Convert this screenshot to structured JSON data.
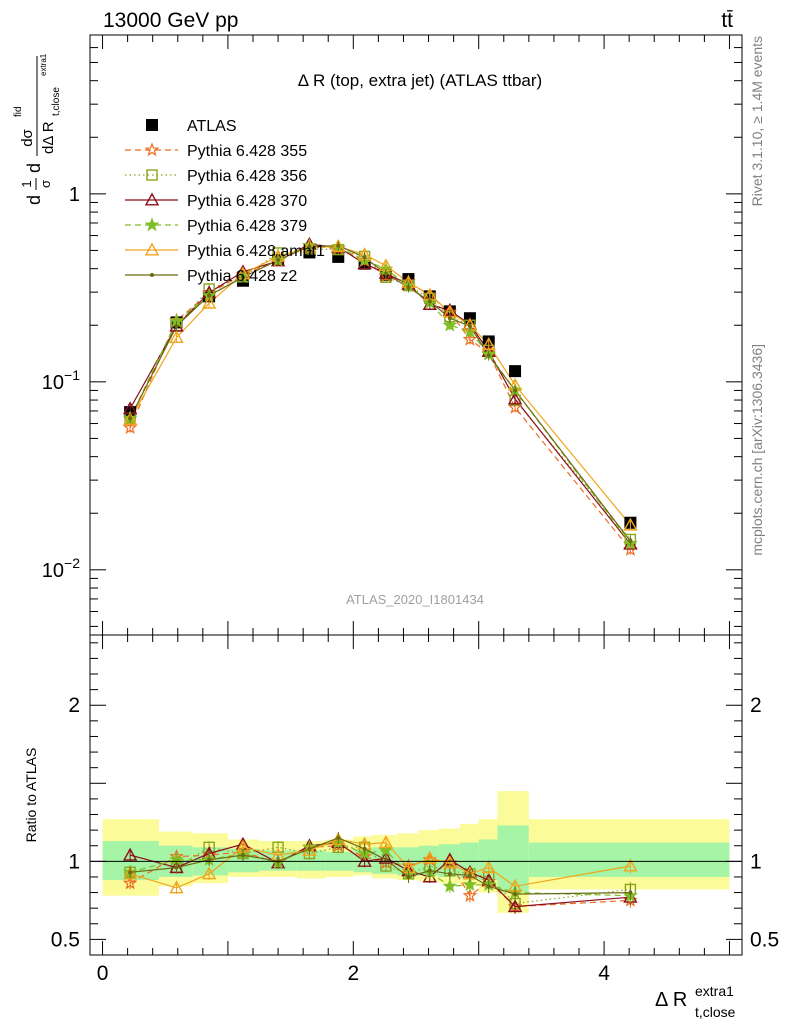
{
  "header": {
    "left": "13000 GeV pp",
    "right": "tt̄"
  },
  "side": {
    "rivet": "Rivet 3.1.10, ≥ 1.4M events",
    "mcplots": "mcplots.cern.ch [arXiv:1306.3436]"
  },
  "chart_data": [
    {
      "type": "line",
      "panel": "main",
      "title": "Δ R (top, extra jet) (ATLAS ttbar)",
      "ylabel_parts": {
        "frac1": "1",
        "sigma": "σ",
        "d": "d",
        "dsigma": "dσ",
        "fid": "fid",
        "dDR": "dΔ R",
        "sub": "t,close",
        "sup": "extra1"
      },
      "watermark": "ATLAS_2020_I1801434",
      "y_scale": "log",
      "ylim": [
        0.0045,
        7.0
      ],
      "y_tick_labels": [
        {
          "value": 0.01,
          "base": "10",
          "exp": "−2"
        },
        {
          "value": 0.1,
          "base": "10",
          "exp": "−1"
        },
        {
          "value": 1,
          "base": "1",
          "exp": ""
        }
      ],
      "x": [
        0.22,
        0.59,
        0.85,
        1.12,
        1.4,
        1.65,
        1.88,
        2.09,
        2.26,
        2.44,
        2.61,
        2.77,
        2.93,
        3.08,
        3.29,
        4.21
      ],
      "legend_placement": "top-left",
      "series": [
        {
          "name": "ATLAS",
          "color": "#000000",
          "marker": "square-filled",
          "line": "none",
          "values": [
            0.069,
            0.207,
            0.285,
            0.345,
            0.445,
            0.488,
            0.462,
            0.425,
            0.37,
            0.352,
            0.285,
            0.237,
            0.218,
            0.164,
            0.114,
            0.0178
          ]
        },
        {
          "name": "Pythia 6.428 355",
          "color": "#ee6b1f",
          "marker": "star",
          "line": "dashed",
          "values": [
            0.057,
            0.212,
            0.296,
            0.372,
            0.44,
            0.53,
            0.51,
            0.44,
            0.365,
            0.34,
            0.288,
            0.235,
            0.168,
            0.142,
            0.073,
            0.0128
          ]
        },
        {
          "name": "Pythia 6.428 356",
          "color": "#8aa51e",
          "marker": "square-open",
          "line": "dotted",
          "values": [
            0.064,
            0.198,
            0.312,
            0.362,
            0.485,
            0.51,
            0.505,
            0.465,
            0.36,
            0.325,
            0.278,
            0.222,
            0.2,
            0.147,
            0.08,
            0.0145
          ]
        },
        {
          "name": "Pythia 6.428 370",
          "color": "#8b0f1e",
          "marker": "triangle-open",
          "line": "solid",
          "values": [
            0.072,
            0.198,
            0.298,
            0.385,
            0.44,
            0.54,
            0.52,
            0.425,
            0.378,
            0.33,
            0.258,
            0.24,
            0.202,
            0.145,
            0.081,
            0.0137
          ]
        },
        {
          "name": "Pythia 6.428 379",
          "color": "#7fbe24",
          "marker": "star-filled",
          "line": "dashed",
          "values": [
            0.064,
            0.21,
            0.287,
            0.362,
            0.442,
            0.53,
            0.52,
            0.445,
            0.398,
            0.325,
            0.264,
            0.2,
            0.185,
            0.14,
            0.09,
            0.0138
          ]
        },
        {
          "name": "Pythia 6.428 ambt1",
          "color": "#f0a51a",
          "marker": "triangle-open",
          "line": "solid",
          "values": [
            0.063,
            0.172,
            0.262,
            0.375,
            0.465,
            0.52,
            0.525,
            0.475,
            0.415,
            0.338,
            0.29,
            0.235,
            0.2,
            0.158,
            0.096,
            0.0173
          ]
        },
        {
          "name": "Pythia 6.428 z2",
          "color": "#6b6b14",
          "marker": "dot",
          "line": "solid",
          "values": [
            0.064,
            0.198,
            0.288,
            0.36,
            0.445,
            0.525,
            0.53,
            0.46,
            0.375,
            0.318,
            0.268,
            0.218,
            0.198,
            0.138,
            0.09,
            0.0142
          ]
        }
      ]
    },
    {
      "type": "line",
      "panel": "ratio",
      "ylabel": "Ratio to ATLAS",
      "xlabel_parts": {
        "main": "Δ R",
        "sup": "extra1",
        "sub": "t,close"
      },
      "ylim": [
        0.4,
        2.45
      ],
      "xlim": [
        -0.1,
        5.1
      ],
      "x_ticks": [
        0,
        2,
        4
      ],
      "y_ticks": [
        0.5,
        1,
        2
      ],
      "reference_line": 1,
      "x": [
        0.22,
        0.59,
        0.85,
        1.12,
        1.4,
        1.65,
        1.88,
        2.09,
        2.26,
        2.44,
        2.61,
        2.77,
        2.93,
        3.08,
        3.29,
        4.21
      ],
      "uncertainty_bands": {
        "bin_edges": [
          0.0,
          0.45,
          0.72,
          1.0,
          1.25,
          1.55,
          1.78,
          2.0,
          2.15,
          2.35,
          2.52,
          2.68,
          2.85,
          3.0,
          3.15,
          3.4,
          5.0
        ],
        "inner_color": "#a6f5a6",
        "outer_color": "#fbfb99",
        "inner": [
          [
            0.88,
            1.13
          ],
          [
            0.9,
            1.1
          ],
          [
            0.91,
            1.09
          ],
          [
            0.93,
            1.08
          ],
          [
            0.94,
            1.07
          ],
          [
            0.94,
            1.07
          ],
          [
            0.94,
            1.06
          ],
          [
            0.93,
            1.08
          ],
          [
            0.92,
            1.09
          ],
          [
            0.91,
            1.09
          ],
          [
            0.91,
            1.1
          ],
          [
            0.9,
            1.11
          ],
          [
            0.89,
            1.12
          ],
          [
            0.88,
            1.14
          ],
          [
            0.8,
            1.23
          ],
          [
            0.9,
            1.12
          ]
        ],
        "outer": [
          [
            0.78,
            1.27
          ],
          [
            0.84,
            1.19
          ],
          [
            0.86,
            1.18
          ],
          [
            0.9,
            1.14
          ],
          [
            0.9,
            1.13
          ],
          [
            0.89,
            1.13
          ],
          [
            0.9,
            1.14
          ],
          [
            0.91,
            1.16
          ],
          [
            0.89,
            1.17
          ],
          [
            0.88,
            1.18
          ],
          [
            0.87,
            1.2
          ],
          [
            0.86,
            1.21
          ],
          [
            0.84,
            1.24
          ],
          [
            0.8,
            1.27
          ],
          [
            0.67,
            1.45
          ],
          [
            0.82,
            1.27
          ]
        ]
      },
      "series": [
        {
          "name": "Pythia 6.428 355",
          "color": "#ee6b1f",
          "values": [
            0.86,
            1.03,
            1.04,
            1.06,
            0.99,
            1.09,
            1.1,
            1.03,
            0.99,
            0.97,
            1.01,
            0.99,
            0.78,
            0.87,
            0.71,
            0.75
          ]
        },
        {
          "name": "Pythia 6.428 356",
          "color": "#8aa51e",
          "values": [
            0.93,
            0.96,
            1.09,
            1.05,
            1.09,
            1.05,
            1.09,
            1.09,
            0.97,
            0.92,
            0.97,
            0.94,
            0.92,
            0.9,
            0.73,
            0.82
          ]
        },
        {
          "name": "Pythia 6.428 370",
          "color": "#8b0f1e",
          "values": [
            1.04,
            0.96,
            1.05,
            1.11,
            0.99,
            1.1,
            1.12,
            1.0,
            1.02,
            0.94,
            0.9,
            1.01,
            0.93,
            0.88,
            0.71,
            0.77
          ]
        },
        {
          "name": "Pythia 6.428 379",
          "color": "#7fbe24",
          "values": [
            0.93,
            1.01,
            1.01,
            1.05,
            0.99,
            1.09,
            1.12,
            1.05,
            1.07,
            0.92,
            0.93,
            0.84,
            0.85,
            0.85,
            0.8,
            0.78
          ]
        },
        {
          "name": "Pythia 6.428 ambt1",
          "color": "#f0a51a",
          "values": [
            0.92,
            0.83,
            0.92,
            1.09,
            1.04,
            1.07,
            1.14,
            1.11,
            1.12,
            0.96,
            1.02,
            0.99,
            0.92,
            0.96,
            0.84,
            0.97
          ]
        },
        {
          "name": "Pythia 6.428 z2",
          "color": "#6b6b14",
          "values": [
            0.93,
            0.96,
            1.01,
            1.04,
            1.0,
            1.08,
            1.15,
            1.08,
            1.01,
            0.9,
            0.94,
            0.92,
            0.91,
            0.84,
            0.79,
            0.8
          ]
        }
      ]
    }
  ]
}
